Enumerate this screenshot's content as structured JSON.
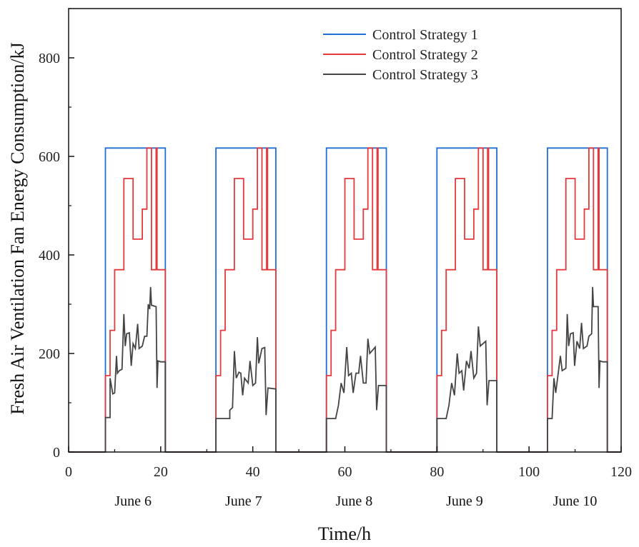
{
  "chart_data": {
    "type": "line",
    "title": "",
    "xlabel": "Time/h",
    "ylabel": "Fresh Air Ventilation Fan Energy Consumption/kJ",
    "xlim": [
      0,
      120
    ],
    "ylim": [
      0,
      900
    ],
    "x_ticks": [
      0,
      20,
      40,
      60,
      80,
      100,
      120
    ],
    "y_ticks": [
      0,
      200,
      400,
      600,
      800
    ],
    "grid": false,
    "legend_position": "top-right",
    "day_labels": [
      {
        "label": "June 6",
        "x": 14
      },
      {
        "label": "June 7",
        "x": 38
      },
      {
        "label": "June 8",
        "x": 62
      },
      {
        "label": "June 9",
        "x": 86
      },
      {
        "label": "June 10",
        "x": 110
      }
    ],
    "series": [
      {
        "name": "Control Strategy 1",
        "color": "#1f6fd6",
        "day_pattern": [
          [
            0,
            0
          ],
          [
            8,
            0
          ],
          [
            8,
            617
          ],
          [
            21,
            617
          ],
          [
            21,
            0
          ],
          [
            24,
            0
          ]
        ]
      },
      {
        "name": "Control Strategy 2",
        "color": "#e5393b",
        "day_pattern": [
          [
            0,
            0
          ],
          [
            8,
            0
          ],
          [
            8,
            155
          ],
          [
            9,
            155
          ],
          [
            9,
            247
          ],
          [
            10,
            247
          ],
          [
            10,
            370
          ],
          [
            12,
            370
          ],
          [
            12,
            555
          ],
          [
            14,
            555
          ],
          [
            14,
            432
          ],
          [
            16,
            432
          ],
          [
            16,
            493
          ],
          [
            17,
            493
          ],
          [
            17,
            617
          ],
          [
            18,
            617
          ],
          [
            18,
            370
          ],
          [
            19,
            370
          ],
          [
            19,
            617
          ],
          [
            19.2,
            617
          ],
          [
            19.2,
            370
          ],
          [
            21,
            370
          ],
          [
            21,
            0
          ],
          [
            24,
            0
          ]
        ]
      },
      {
        "name": "Control Strategy 3",
        "color": "#444444",
        "days": [
          [
            [
              8,
              0
            ],
            [
              8,
              70
            ],
            [
              9,
              70
            ],
            [
              9,
              150
            ],
            [
              9.6,
              118
            ],
            [
              10,
              120
            ],
            [
              10.4,
              195
            ],
            [
              10.6,
              160
            ],
            [
              11,
              165
            ],
            [
              11.6,
              168
            ],
            [
              12,
              280
            ],
            [
              12.3,
              215
            ],
            [
              12.6,
              240
            ],
            [
              13.2,
              242
            ],
            [
              13.6,
              175
            ],
            [
              14,
              220
            ],
            [
              14.5,
              210
            ],
            [
              15,
              260
            ],
            [
              15.3,
              210
            ],
            [
              16,
              215
            ],
            [
              16.5,
              235
            ],
            [
              17,
              235
            ],
            [
              17.3,
              300
            ],
            [
              17.6,
              290
            ],
            [
              17.8,
              335
            ],
            [
              18,
              298
            ],
            [
              19,
              295
            ],
            [
              19.2,
              130
            ],
            [
              19.4,
              185
            ],
            [
              20,
              183
            ],
            [
              21,
              183
            ],
            [
              21,
              0
            ]
          ],
          [
            [
              32,
              0
            ],
            [
              32,
              68
            ],
            [
              35,
              68
            ],
            [
              35,
              85
            ],
            [
              35.6,
              90
            ],
            [
              36,
              205
            ],
            [
              36.4,
              150
            ],
            [
              37,
              162
            ],
            [
              37.4,
              160
            ],
            [
              37.8,
              115
            ],
            [
              38.2,
              150
            ],
            [
              39,
              140
            ],
            [
              39.4,
              185
            ],
            [
              40,
              135
            ],
            [
              40.6,
              140
            ],
            [
              41,
              233
            ],
            [
              41.3,
              180
            ],
            [
              42,
              210
            ],
            [
              42.6,
              212
            ],
            [
              42.9,
              75
            ],
            [
              43.3,
              130
            ],
            [
              45,
              128
            ],
            [
              45,
              0
            ]
          ],
          [
            [
              56,
              0
            ],
            [
              56,
              68
            ],
            [
              58,
              68
            ],
            [
              58.6,
              95
            ],
            [
              59.2,
              140
            ],
            [
              59.8,
              120
            ],
            [
              60.4,
              213
            ],
            [
              60.8,
              155
            ],
            [
              61.4,
              160
            ],
            [
              61.8,
              120
            ],
            [
              62.4,
              160
            ],
            [
              63,
              160
            ],
            [
              63.4,
              195
            ],
            [
              64,
              140
            ],
            [
              64.6,
              140
            ],
            [
              65,
              230
            ],
            [
              65.4,
              200
            ],
            [
              66.6,
              213
            ],
            [
              66.9,
              85
            ],
            [
              67.3,
              135
            ],
            [
              69,
              135
            ],
            [
              69,
              0
            ]
          ],
          [
            [
              80,
              0
            ],
            [
              80,
              68
            ],
            [
              82,
              68
            ],
            [
              82.6,
              95
            ],
            [
              83.2,
              140
            ],
            [
              83.8,
              115
            ],
            [
              84.4,
              200
            ],
            [
              84.8,
              160
            ],
            [
              85.4,
              165
            ],
            [
              85.8,
              125
            ],
            [
              86.4,
              185
            ],
            [
              87,
              170
            ],
            [
              87.4,
              205
            ],
            [
              88,
              150
            ],
            [
              88.6,
              160
            ],
            [
              89,
              255
            ],
            [
              89.4,
              215
            ],
            [
              90.6,
              225
            ],
            [
              90.9,
              95
            ],
            [
              91.3,
              145
            ],
            [
              93,
              145
            ],
            [
              93,
              0
            ]
          ],
          [
            [
              104,
              0
            ],
            [
              104,
              68
            ],
            [
              105,
              68
            ],
            [
              105.4,
              150
            ],
            [
              105.8,
              120
            ],
            [
              106.4,
              165
            ],
            [
              106.8,
              195
            ],
            [
              107.2,
              165
            ],
            [
              108,
              170
            ],
            [
              108.3,
              280
            ],
            [
              108.6,
              215
            ],
            [
              109,
              240
            ],
            [
              109.6,
              242
            ],
            [
              109.9,
              175
            ],
            [
              110.4,
              225
            ],
            [
              111,
              210
            ],
            [
              111.4,
              262
            ],
            [
              111.8,
              210
            ],
            [
              112.6,
              215
            ],
            [
              113,
              235
            ],
            [
              113.6,
              240
            ],
            [
              113.8,
              335
            ],
            [
              114,
              295
            ],
            [
              115,
              295
            ],
            [
              115.2,
              130
            ],
            [
              115.4,
              185
            ],
            [
              116,
              183
            ],
            [
              117,
              183
            ],
            [
              117,
              0
            ]
          ]
        ]
      }
    ]
  }
}
